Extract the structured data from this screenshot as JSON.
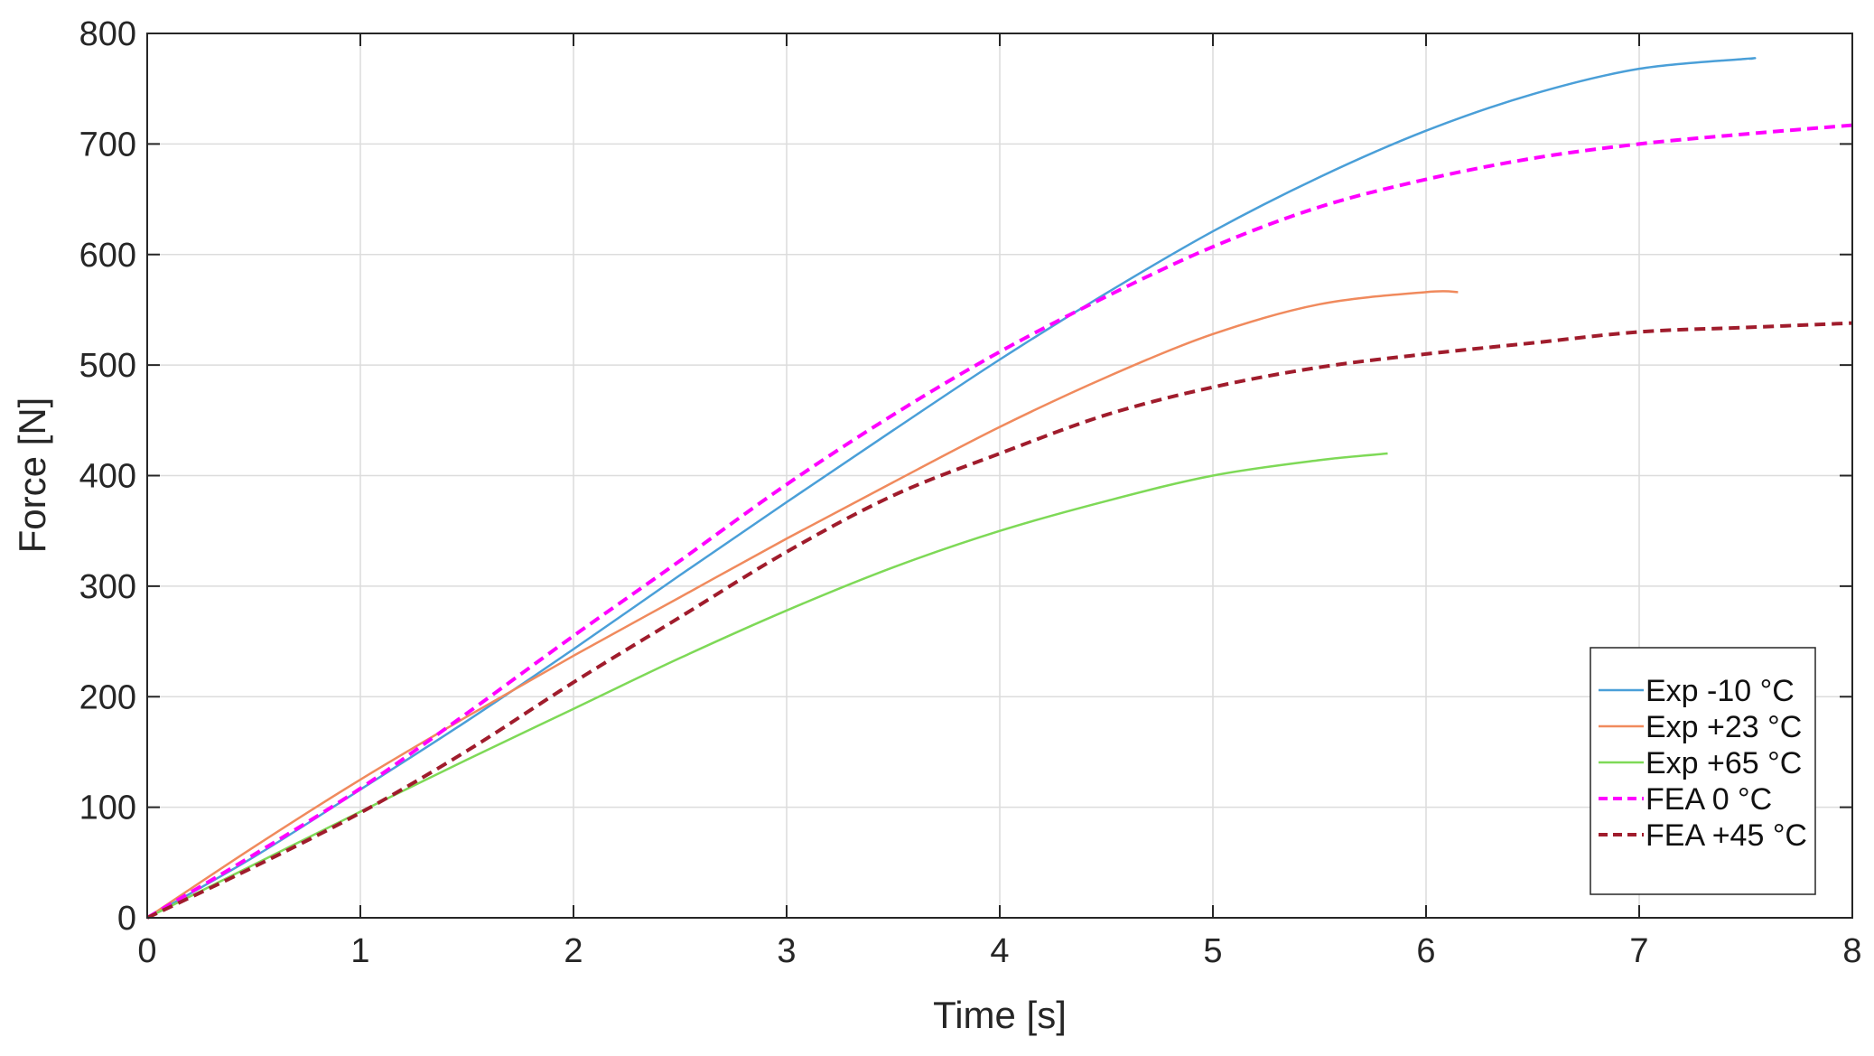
{
  "chart_data": {
    "type": "line",
    "title": "",
    "xlabel": "Time [s]",
    "ylabel": "Force [N]",
    "xlim": [
      0,
      8
    ],
    "ylim": [
      0,
      800
    ],
    "xticks": [
      0,
      1,
      2,
      3,
      4,
      5,
      6,
      7,
      8
    ],
    "yticks": [
      0,
      100,
      200,
      300,
      400,
      500,
      600,
      700,
      800
    ],
    "grid": true,
    "legend_position": "bottom-right",
    "series": [
      {
        "name": "Exp -10 °C",
        "color": "#4a9fd8",
        "dash": "solid",
        "x": [
          0,
          0.5,
          1,
          1.5,
          2,
          2.5,
          3,
          3.5,
          4,
          4.5,
          5,
          5.5,
          6,
          6.5,
          7,
          7.5,
          7.52
        ],
        "y": [
          0,
          55,
          116,
          178,
          243,
          310,
          376,
          441,
          505,
          565,
          621,
          670,
          712,
          745,
          768,
          777,
          777
        ]
      },
      {
        "name": "Exp +23 °C",
        "color": "#f08a5d",
        "dash": "solid",
        "x": [
          0,
          0.5,
          1,
          1.5,
          2,
          2.5,
          3,
          3.5,
          4,
          4.5,
          5,
          5.5,
          6,
          6.15
        ],
        "y": [
          0,
          64,
          125,
          182,
          237,
          290,
          343,
          394,
          444,
          489,
          528,
          555,
          566,
          566
        ]
      },
      {
        "name": "Exp +65 °C",
        "color": "#7ed957",
        "dash": "solid",
        "x": [
          0,
          0.5,
          1,
          1.5,
          2,
          2.5,
          3,
          3.5,
          4,
          4.5,
          5,
          5.5,
          5.82
        ],
        "y": [
          0,
          48,
          96,
          143,
          189,
          235,
          278,
          317,
          350,
          377,
          400,
          414,
          420
        ]
      },
      {
        "name": "FEA 0 °C",
        "color": "#ff00ff",
        "dash": "dashed",
        "x": [
          0,
          0.5,
          1,
          1.5,
          2,
          2.5,
          3,
          3.5,
          4,
          4.5,
          5,
          5.5,
          6,
          6.5,
          7,
          7.5,
          8
        ],
        "y": [
          0,
          57,
          117,
          185,
          255,
          323,
          392,
          455,
          512,
          562,
          607,
          643,
          668,
          687,
          700,
          709,
          717
        ]
      },
      {
        "name": "FEA +45 °C",
        "color": "#a01c2c",
        "dash": "dashed",
        "x": [
          0,
          0.5,
          1,
          1.5,
          2,
          2.5,
          3,
          3.5,
          4,
          4.5,
          5,
          5.5,
          6,
          6.5,
          7,
          7.5,
          8
        ],
        "y": [
          0,
          46,
          95,
          151,
          213,
          272,
          331,
          382,
          420,
          455,
          480,
          498,
          510,
          520,
          530,
          534,
          538
        ]
      }
    ]
  }
}
